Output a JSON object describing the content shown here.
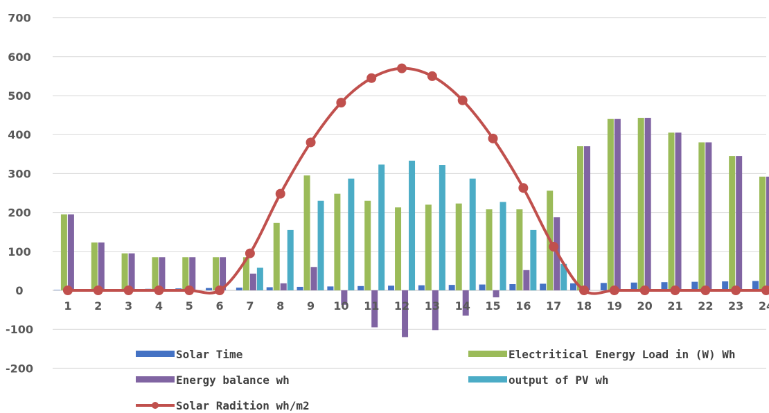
{
  "colors": {
    "solar_time": "#4472c4",
    "load": "#9bbb59",
    "balance": "#8064a2",
    "pv": "#4bacc6",
    "radiation": "#c0504d",
    "grid": "#d9d9d9",
    "axis": "#bfbfbf"
  },
  "chart_data": {
    "type": "bar",
    "categories": [
      "1",
      "2",
      "3",
      "4",
      "5",
      "6",
      "7",
      "8",
      "9",
      "10",
      "11",
      "12",
      "13",
      "14",
      "15",
      "16",
      "17",
      "18",
      "19",
      "20",
      "21",
      "22",
      "23",
      "24"
    ],
    "ylim": [
      -200,
      700
    ],
    "yticks": [
      700,
      600,
      500,
      400,
      300,
      200,
      100,
      0,
      -100,
      -200
    ],
    "grid": true,
    "legend_position": "bottom",
    "title": "",
    "xlabel": "",
    "ylabel": "",
    "series": [
      {
        "name": "Solar Time",
        "kind": "bar",
        "color_key": "solar_time",
        "values": [
          1,
          2,
          3,
          4,
          5,
          6,
          7,
          8,
          9,
          10,
          11,
          12,
          13,
          14,
          15,
          16,
          17,
          18,
          19,
          20,
          21,
          22,
          23,
          24
        ]
      },
      {
        "name": "Electritical Energy Load in (W) Wh",
        "kind": "bar",
        "color_key": "load",
        "values": [
          195,
          123,
          95,
          85,
          85,
          85,
          85,
          173,
          295,
          248,
          230,
          213,
          220,
          223,
          208,
          208,
          256,
          370,
          440,
          443,
          405,
          380,
          345,
          292
        ]
      },
      {
        "name": "Energy balance wh",
        "kind": "bar",
        "color_key": "balance",
        "values": [
          195,
          123,
          95,
          85,
          85,
          85,
          43,
          18,
          60,
          -37,
          -95,
          -120,
          -102,
          -65,
          -18,
          52,
          188,
          370,
          440,
          443,
          405,
          380,
          345,
          292
        ]
      },
      {
        "name": " output of PV wh",
        "kind": "bar",
        "color_key": "pv",
        "values": [
          0,
          0,
          0,
          0,
          0,
          0,
          58,
          155,
          230,
          287,
          323,
          333,
          322,
          287,
          227,
          155,
          68,
          0,
          0,
          0,
          0,
          0,
          0,
          0
        ]
      },
      {
        "name": "Solar Radition wh/m2",
        "kind": "line",
        "color_key": "radiation",
        "values": [
          0,
          0,
          0,
          0,
          0,
          0,
          95,
          248,
          380,
          482,
          545,
          570,
          550,
          488,
          390,
          263,
          112,
          0,
          0,
          0,
          0,
          0,
          0,
          0
        ]
      }
    ]
  }
}
